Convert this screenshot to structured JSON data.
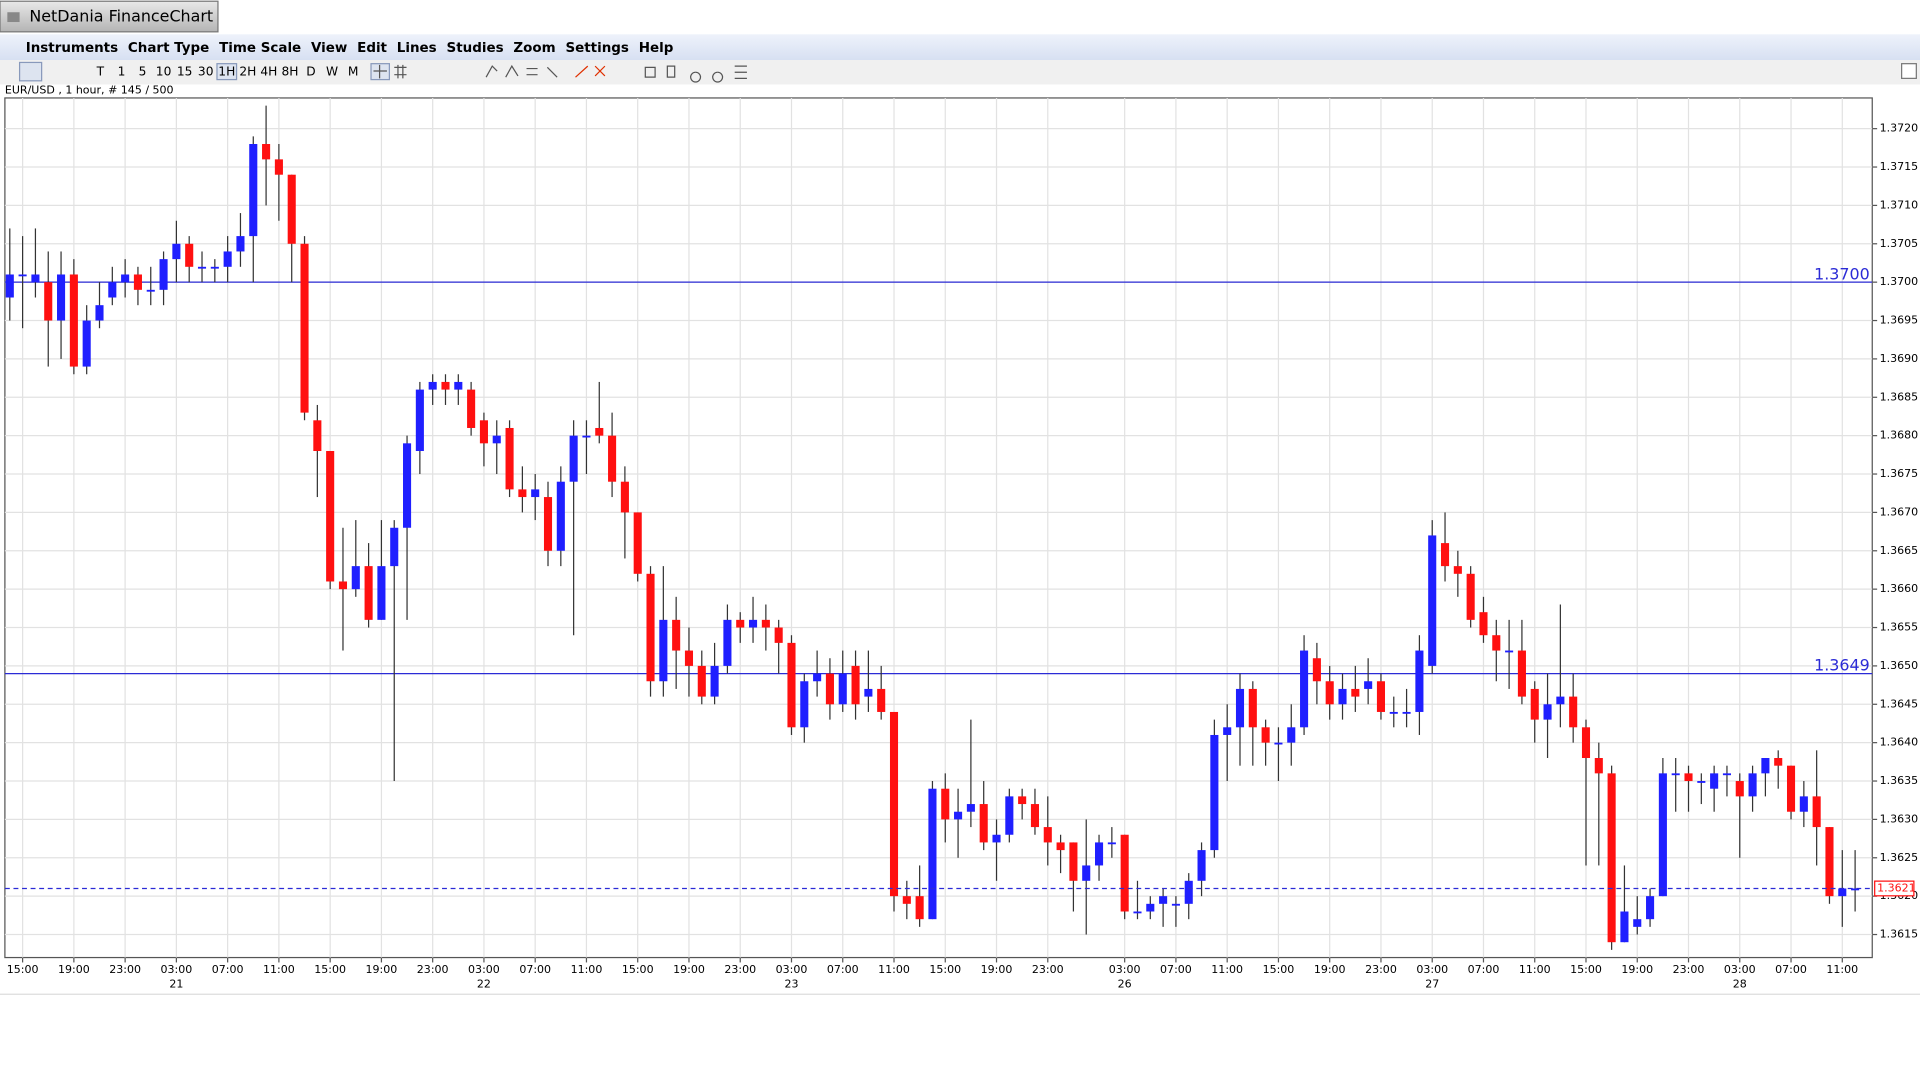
{
  "window": {
    "title": "NetDania FinanceChart"
  },
  "menu": [
    "Instruments",
    "Chart Type",
    "Time Scale",
    "View",
    "Edit",
    "Lines",
    "Studies",
    "Zoom",
    "Settings",
    "Help"
  ],
  "toolbar": {
    "time_scales": [
      "T",
      "1",
      "5",
      "10",
      "15",
      "30",
      "1H",
      "2H",
      "4H",
      "8H",
      "D",
      "W",
      "M"
    ],
    "active_time_scale": "1H"
  },
  "chart_data": {
    "type": "candlestick",
    "info": "EUR/USD , 1 hour, # 145 / 500",
    "up_color": "#1f1fff",
    "down_color": "#ff1010",
    "line_color": "#2b2bd6",
    "grid": true,
    "ylim": [
      1.3612,
      1.3724
    ],
    "yticks": [
      1.3615,
      {
        "value": 1.362,
        "label": "1.3620"
      },
      1.3625,
      {
        "value": 1.363,
        "label": "1.3630"
      },
      1.3635,
      {
        "value": 1.364,
        "label": "1.3640"
      },
      1.3645,
      {
        "value": 1.365,
        "label": "1.3650"
      },
      1.3655,
      {
        "value": 1.366,
        "label": "1.3660"
      },
      1.3665,
      {
        "value": 1.367,
        "label": "1.3670"
      },
      1.3675,
      {
        "value": 1.368,
        "label": "1.3680"
      },
      1.3685,
      {
        "value": 1.369,
        "label": "1.3690"
      },
      1.3695,
      {
        "value": 1.37,
        "label": "1.3700"
      },
      1.3705,
      {
        "value": 1.371,
        "label": "1.3710"
      },
      1.3715,
      {
        "value": 1.372,
        "label": "1.3720"
      }
    ],
    "lines": [
      {
        "value": 1.37,
        "label": "1.3700"
      },
      {
        "value": 1.3649,
        "label": "1.3649"
      }
    ],
    "last_price": {
      "value": 1.3621,
      "label": "1.3621"
    },
    "categories": [
      null,
      "15:00",
      null,
      null,
      null,
      "19:00",
      null,
      null,
      null,
      "23:00",
      null,
      null,
      null,
      "03:00",
      null,
      null,
      null,
      "07:00",
      null,
      null,
      null,
      "11:00",
      null,
      null,
      null,
      "15:00",
      null,
      null,
      null,
      "19:00",
      null,
      null,
      null,
      "23:00",
      null,
      null,
      null,
      "03:00",
      null,
      null,
      null,
      "07:00",
      null,
      null,
      null,
      "11:00",
      null,
      null,
      null,
      "15:00",
      null,
      null,
      null,
      "19:00",
      null,
      null,
      null,
      "23:00",
      null,
      null,
      null,
      "03:00",
      null,
      null,
      null,
      "07:00",
      null,
      null,
      null,
      "11:00",
      null,
      null,
      null,
      "15:00",
      null,
      null,
      null,
      "19:00",
      null,
      null,
      null,
      "23:00",
      null,
      null,
      null,
      null,
      null,
      "03:00",
      null,
      null,
      null,
      "07:00",
      null,
      null,
      null,
      "11:00",
      null,
      null,
      null,
      "15:00",
      null,
      null,
      null,
      "19:00",
      null,
      null,
      null,
      "23:00",
      null,
      null,
      null,
      "03:00",
      null,
      null,
      null,
      "07:00",
      null,
      null,
      null,
      "11:00",
      null,
      null,
      null,
      "15:00",
      null,
      null,
      null,
      "19:00",
      null,
      null,
      null,
      "23:00",
      null,
      null,
      null,
      "03:00",
      null,
      null,
      null,
      "07:00",
      null,
      null,
      null,
      "11:00",
      null
    ],
    "dates": [
      null,
      null,
      null,
      null,
      null,
      null,
      null,
      null,
      null,
      null,
      null,
      null,
      null,
      "21",
      null,
      null,
      null,
      null,
      null,
      null,
      null,
      null,
      null,
      null,
      null,
      null,
      null,
      null,
      null,
      null,
      null,
      null,
      null,
      null,
      null,
      null,
      null,
      "22",
      null,
      null,
      null,
      null,
      null,
      null,
      null,
      null,
      null,
      null,
      null,
      null,
      null,
      null,
      null,
      null,
      null,
      null,
      null,
      null,
      null,
      null,
      null,
      "23",
      null,
      null,
      null,
      null,
      null,
      null,
      null,
      null,
      null,
      null,
      null,
      null,
      null,
      null,
      null,
      null,
      null,
      null,
      null,
      null,
      null,
      null,
      null,
      null,
      null,
      "26",
      null,
      null,
      null,
      null,
      null,
      null,
      null,
      null,
      null,
      null,
      null,
      null,
      null,
      null,
      null,
      null,
      null,
      null,
      null,
      null,
      null,
      null,
      null,
      "27",
      null,
      null,
      null,
      null,
      null,
      null,
      null,
      null,
      null,
      null,
      null,
      null,
      null,
      null,
      null,
      null,
      null,
      null,
      null,
      null,
      null,
      null,
      null,
      "28",
      null,
      null,
      null,
      null,
      null,
      null,
      null,
      null,
      null
    ],
    "open": [
      1.3698,
      1.3701,
      1.37,
      1.37,
      1.3695,
      1.3701,
      1.3689,
      1.3695,
      1.3698,
      1.37,
      1.3701,
      1.3699,
      1.3699,
      1.3703,
      1.3705,
      1.3702,
      1.3702,
      1.3702,
      1.3704,
      1.3706,
      1.3718,
      1.3716,
      1.3714,
      1.3705,
      1.3682,
      1.3678,
      1.3661,
      1.366,
      1.3663,
      1.3656,
      1.3663,
      1.3668,
      1.3678,
      1.3686,
      1.3687,
      1.3686,
      1.3686,
      1.3682,
      1.3679,
      1.3681,
      1.3673,
      1.3672,
      1.3672,
      1.3665,
      1.3674,
      1.368,
      1.3681,
      1.368,
      1.3674,
      1.367,
      1.3662,
      1.3648,
      1.3656,
      1.3652,
      1.365,
      1.3646,
      1.365,
      1.3656,
      1.3655,
      1.3656,
      1.3655,
      1.3653,
      1.3642,
      1.3648,
      1.3649,
      1.3645,
      1.365,
      1.3646,
      1.3647,
      1.3644,
      1.362,
      1.362,
      1.3617,
      1.3634,
      1.363,
      1.3631,
      1.3632,
      1.3627,
      1.3628,
      1.3633,
      1.3632,
      1.3629,
      1.3627,
      1.3627,
      1.3622,
      1.3624,
      1.3627,
      1.3628,
      1.3618,
      1.3618,
      1.3619,
      1.3619,
      1.3619,
      1.3622,
      1.3626,
      1.3641,
      1.3642,
      1.3647,
      1.3642,
      1.364,
      1.364,
      1.3642,
      1.3651,
      1.3648,
      1.3645,
      1.3647,
      1.3647,
      1.3648,
      1.3644,
      1.3644,
      1.3644,
      1.365,
      1.3666,
      1.3663,
      1.3662,
      1.3657,
      1.3654,
      1.3652,
      1.3652,
      1.3647,
      1.3643,
      1.3645,
      1.3646,
      1.3642,
      1.3638,
      1.3636,
      1.3614,
      1.3616,
      1.3617,
      1.362,
      1.3636,
      1.3636,
      1.3635,
      1.3634,
      1.3636,
      1.3635,
      1.3633,
      1.3636,
      1.3638,
      1.3637,
      1.3631,
      1.3633,
      1.3629,
      1.362,
      1.3621
    ],
    "high": [
      1.3707,
      1.3706,
      1.3707,
      1.3704,
      1.3704,
      1.3703,
      1.3697,
      1.37,
      1.3702,
      1.3703,
      1.3702,
      1.3702,
      1.3704,
      1.3708,
      1.3706,
      1.3704,
      1.3703,
      1.3706,
      1.3709,
      1.3719,
      1.3723,
      1.3718,
      1.3714,
      1.3706,
      1.3684,
      1.3678,
      1.3668,
      1.3669,
      1.3666,
      1.3669,
      1.3669,
      1.368,
      1.3687,
      1.3688,
      1.3688,
      1.3688,
      1.3687,
      1.3683,
      1.3682,
      1.3682,
      1.3676,
      1.3675,
      1.3674,
      1.3676,
      1.3682,
      1.3682,
      1.3687,
      1.3683,
      1.3676,
      1.367,
      1.3663,
      1.3663,
      1.3659,
      1.3655,
      1.3652,
      1.3653,
      1.3658,
      1.3657,
      1.3659,
      1.3658,
      1.3656,
      1.3654,
      1.3649,
      1.3652,
      1.3651,
      1.3652,
      1.3652,
      1.3652,
      1.365,
      1.3644,
      1.3622,
      1.3624,
      1.3635,
      1.3636,
      1.3634,
      1.3643,
      1.3635,
      1.363,
      1.3634,
      1.3634,
      1.3634,
      1.3633,
      1.3628,
      1.3627,
      1.363,
      1.3628,
      1.3629,
      1.3628,
      1.3622,
      1.362,
      1.3621,
      1.362,
      1.3623,
      1.3627,
      1.3643,
      1.3645,
      1.3649,
      1.3648,
      1.3643,
      1.3642,
      1.3645,
      1.3654,
      1.3653,
      1.365,
      1.3649,
      1.365,
      1.3651,
      1.3649,
      1.3646,
      1.3647,
      1.3654,
      1.3669,
      1.367,
      1.3665,
      1.3663,
      1.3659,
      1.3656,
      1.3656,
      1.3656,
      1.3648,
      1.3649,
      1.3658,
      1.3649,
      1.3643,
      1.364,
      1.3637,
      1.3624,
      1.362,
      1.3621,
      1.3638,
      1.3638,
      1.3637,
      1.3636,
      1.3637,
      1.3637,
      1.3636,
      1.3637,
      1.3638,
      1.3639,
      1.3637,
      1.3635,
      1.3639,
      1.3629,
      1.3626,
      1.3626
    ],
    "low": [
      1.3695,
      1.3694,
      1.3698,
      1.3689,
      1.369,
      1.3688,
      1.3688,
      1.3694,
      1.3697,
      1.3698,
      1.3697,
      1.3697,
      1.3697,
      1.37,
      1.37,
      1.37,
      1.37,
      1.37,
      1.3702,
      1.37,
      1.371,
      1.3708,
      1.37,
      1.3682,
      1.3672,
      1.366,
      1.3652,
      1.3659,
      1.3655,
      1.3656,
      1.3635,
      1.3656,
      1.3675,
      1.3684,
      1.3684,
      1.3684,
      1.368,
      1.3676,
      1.3675,
      1.3672,
      1.367,
      1.3669,
      1.3663,
      1.3663,
      1.3654,
      1.3675,
      1.3679,
      1.3672,
      1.3664,
      1.3661,
      1.3646,
      1.3646,
      1.3647,
      1.3646,
      1.3645,
      1.3645,
      1.3649,
      1.3653,
      1.3653,
      1.3652,
      1.3649,
      1.3641,
      1.364,
      1.3646,
      1.3643,
      1.3644,
      1.3643,
      1.3644,
      1.3643,
      1.3618,
      1.3617,
      1.3616,
      1.3617,
      1.3627,
      1.3625,
      1.3629,
      1.3626,
      1.3622,
      1.3627,
      1.363,
      1.3628,
      1.3624,
      1.3623,
      1.3618,
      1.3615,
      1.3622,
      1.3625,
      1.3617,
      1.3617,
      1.3617,
      1.3616,
      1.3616,
      1.3617,
      1.362,
      1.3625,
      1.3635,
      1.3637,
      1.3637,
      1.3637,
      1.3635,
      1.3637,
      1.3641,
      1.3645,
      1.3643,
      1.3643,
      1.3644,
      1.3645,
      1.3643,
      1.3642,
      1.3642,
      1.3641,
      1.3649,
      1.3661,
      1.3659,
      1.3655,
      1.3653,
      1.3648,
      1.3647,
      1.3645,
      1.364,
      1.3638,
      1.3642,
      1.364,
      1.3624,
      1.3624,
      1.3613,
      1.3614,
      1.3615,
      1.3616,
      1.362,
      1.3631,
      1.3631,
      1.3632,
      1.3631,
      1.3633,
      1.3625,
      1.3631,
      1.3633,
      1.3634,
      1.363,
      1.3629,
      1.3624,
      1.3619,
      1.3616,
      1.3618
    ],
    "close": [
      1.3701,
      1.3701,
      1.3701,
      1.3695,
      1.3701,
      1.3689,
      1.3695,
      1.3697,
      1.37,
      1.3701,
      1.3699,
      1.3699,
      1.3703,
      1.3705,
      1.3702,
      1.3702,
      1.3702,
      1.3704,
      1.3706,
      1.3718,
      1.3716,
      1.3714,
      1.3705,
      1.3683,
      1.3678,
      1.3661,
      1.366,
      1.3663,
      1.3656,
      1.3663,
      1.3668,
      1.3679,
      1.3686,
      1.3687,
      1.3686,
      1.3687,
      1.3681,
      1.3679,
      1.368,
      1.3673,
      1.3672,
      1.3673,
      1.3665,
      1.3674,
      1.368,
      1.368,
      1.368,
      1.3674,
      1.367,
      1.3662,
      1.3648,
      1.3656,
      1.3652,
      1.365,
      1.3646,
      1.365,
      1.3656,
      1.3655,
      1.3656,
      1.3655,
      1.3653,
      1.3642,
      1.3648,
      1.3649,
      1.3645,
      1.3649,
      1.3645,
      1.3647,
      1.3644,
      1.362,
      1.3619,
      1.3617,
      1.3634,
      1.363,
      1.3631,
      1.3632,
      1.3627,
      1.3628,
      1.3633,
      1.3632,
      1.3629,
      1.3627,
      1.3626,
      1.3622,
      1.3624,
      1.3627,
      1.3627,
      1.3618,
      1.3618,
      1.3619,
      1.362,
      1.3619,
      1.3622,
      1.3626,
      1.3641,
      1.3642,
      1.3647,
      1.3642,
      1.364,
      1.364,
      1.3642,
      1.3652,
      1.3648,
      1.3645,
      1.3647,
      1.3646,
      1.3648,
      1.3644,
      1.3644,
      1.3644,
      1.3652,
      1.3667,
      1.3663,
      1.3662,
      1.3656,
      1.3654,
      1.3652,
      1.3652,
      1.3646,
      1.3643,
      1.3645,
      1.3646,
      1.3642,
      1.3638,
      1.3636,
      1.3614,
      1.3618,
      1.3617,
      1.362,
      1.3636,
      1.3636,
      1.3635,
      1.3635,
      1.3636,
      1.3636,
      1.3633,
      1.3636,
      1.3638,
      1.3637,
      1.3631,
      1.3633,
      1.3629,
      1.362,
      1.3621,
      1.3621
    ]
  }
}
